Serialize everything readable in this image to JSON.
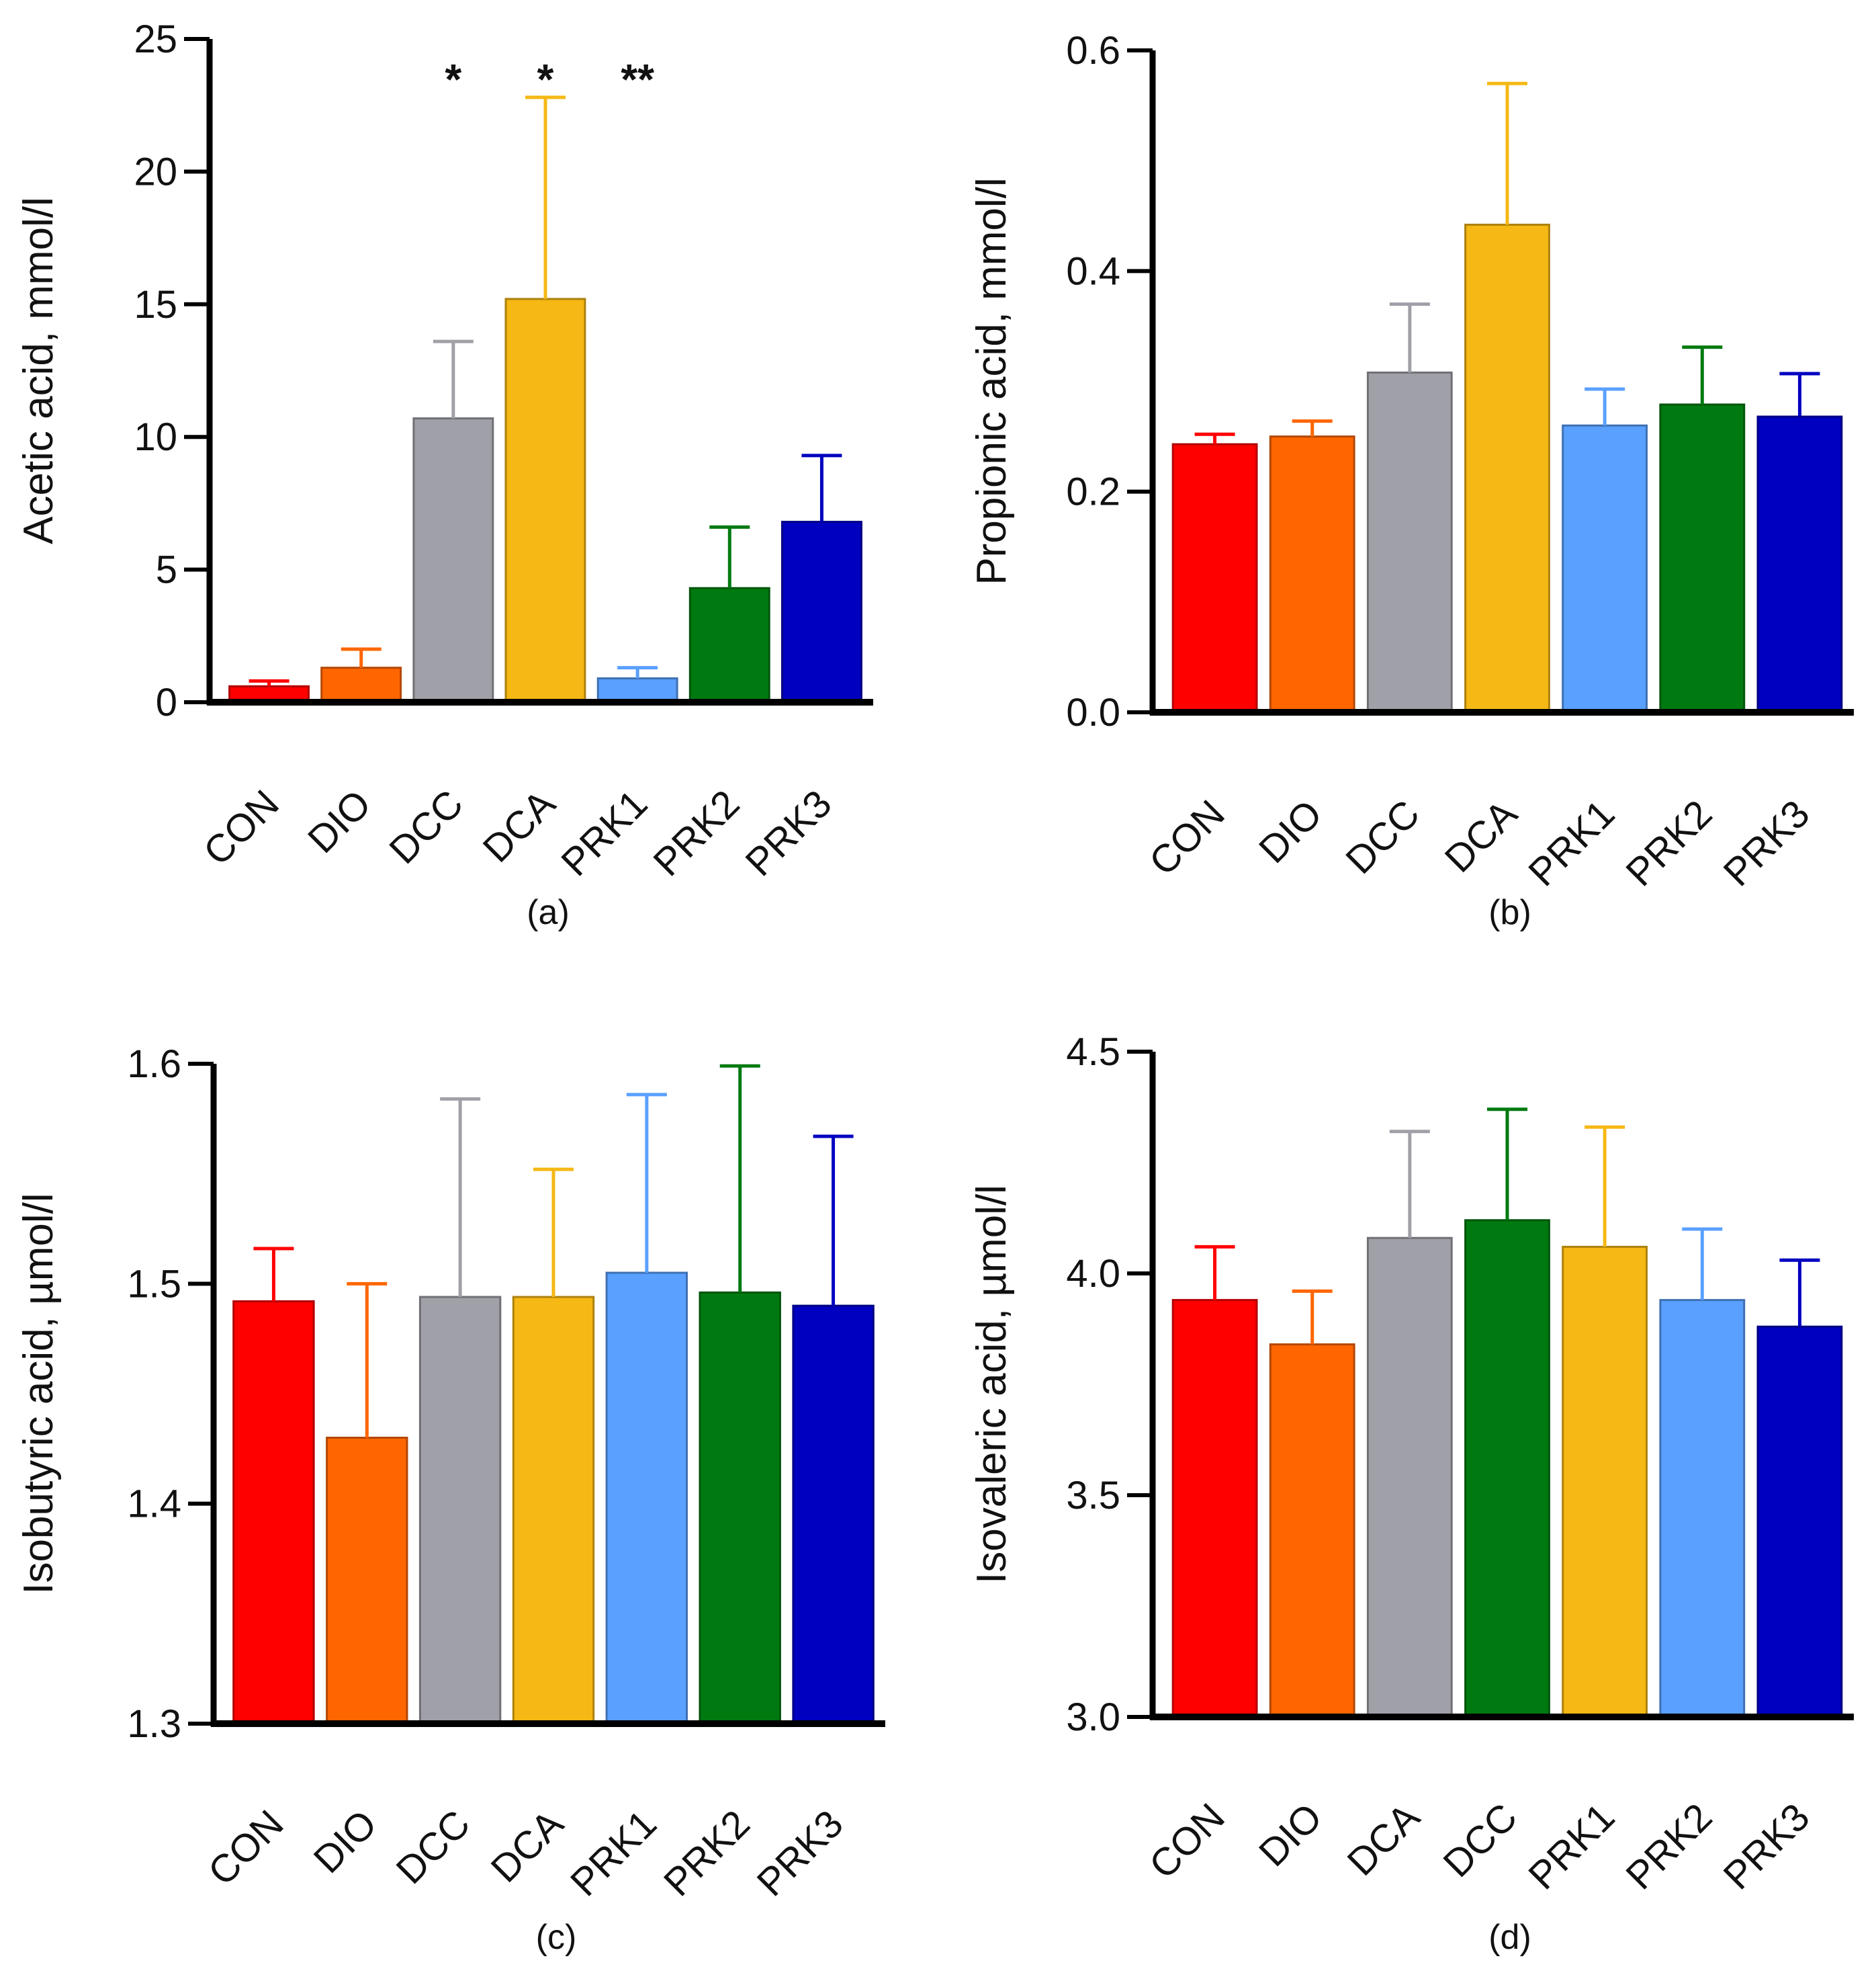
{
  "chart_data": [
    {
      "type": "bar",
      "panel": "(a)",
      "ylabel": "Acetic acid, mmol/l",
      "ylim": [
        0,
        25
      ],
      "yticks": [
        "0",
        "5",
        "10",
        "15",
        "20",
        "25"
      ],
      "tick_values": [
        0,
        5,
        10,
        15,
        20,
        25
      ],
      "categories": [
        "CON",
        "DIO",
        "DCC",
        "DCA",
        "PRK1",
        "PRK2",
        "PRK3"
      ],
      "values": [
        0.6,
        1.3,
        10.7,
        15.2,
        0.9,
        4.3,
        6.8
      ],
      "errors": [
        0.2,
        0.7,
        2.9,
        7.6,
        0.4,
        2.3,
        2.5
      ],
      "colors": [
        "#ff0000",
        "#ff6600",
        "#a0a0a8",
        "#f5b814",
        "#5aa0ff",
        "#007a10",
        "#0000c0"
      ],
      "significance": [
        "",
        "",
        "*",
        "*",
        "**",
        "",
        ""
      ]
    },
    {
      "type": "bar",
      "panel": "(b)",
      "ylabel": "Propionic acid, mmol/l",
      "ylim": [
        0,
        0.6
      ],
      "yticks": [
        "0.0",
        "0.2",
        "0.4",
        "0.6"
      ],
      "tick_values": [
        0,
        0.2,
        0.4,
        0.6
      ],
      "categories": [
        "CON",
        "DIO",
        "DCC",
        "DCA",
        "PRK1",
        "PRK2",
        "PRK3"
      ],
      "values": [
        0.243,
        0.25,
        0.308,
        0.442,
        0.26,
        0.279,
        0.268
      ],
      "errors": [
        0.009,
        0.014,
        0.062,
        0.128,
        0.033,
        0.052,
        0.039
      ],
      "colors": [
        "#ff0000",
        "#ff6600",
        "#a0a0a8",
        "#f5b814",
        "#5aa0ff",
        "#007a10",
        "#0000c0"
      ],
      "significance": [
        "",
        "",
        "",
        "",
        "",
        "",
        ""
      ]
    },
    {
      "type": "bar",
      "panel": "(c)",
      "ylabel": "Isobutyric acid, µmol/l",
      "ylim": [
        1.3,
        1.6
      ],
      "yticks": [
        "1.3",
        "1.4",
        "1.5",
        "1.6"
      ],
      "tick_values": [
        1.3,
        1.4,
        1.5,
        1.6
      ],
      "categories": [
        "CON",
        "DIO",
        "DCC",
        "DCA",
        "PRK1",
        "PRK2",
        "PRK3"
      ],
      "values": [
        1.492,
        1.43,
        1.494,
        1.494,
        1.505,
        1.496,
        1.49
      ],
      "errors": [
        0.024,
        0.07,
        0.09,
        0.058,
        0.081,
        0.103,
        0.077
      ],
      "colors": [
        "#ff0000",
        "#ff6600",
        "#a0a0a8",
        "#f5b814",
        "#5aa0ff",
        "#007a10",
        "#0000c0"
      ],
      "significance": [
        "",
        "",
        "",
        "",
        "",
        "",
        ""
      ]
    },
    {
      "type": "bar",
      "panel": "(d)",
      "ylabel": "Isovaleric acid, µmol/l",
      "ylim": [
        3.0,
        4.5
      ],
      "yticks": [
        "3.0",
        "3.5",
        "4.0",
        "4.5"
      ],
      "tick_values": [
        3.0,
        3.5,
        4.0,
        4.5
      ],
      "categories": [
        "CON",
        "DIO",
        "DCA",
        "DCC",
        "PRK1",
        "PRK2",
        "PRK3"
      ],
      "values": [
        3.94,
        3.84,
        4.08,
        4.12,
        4.06,
        3.94,
        3.88
      ],
      "errors": [
        0.12,
        0.12,
        0.24,
        0.25,
        0.27,
        0.16,
        0.15
      ],
      "colors": [
        "#ff0000",
        "#ff6600",
        "#a0a0a8",
        "#007a10",
        "#f5b814",
        "#5aa0ff",
        "#0000c0"
      ],
      "significance": [
        "",
        "",
        "",
        "",
        "",
        "",
        ""
      ]
    }
  ]
}
